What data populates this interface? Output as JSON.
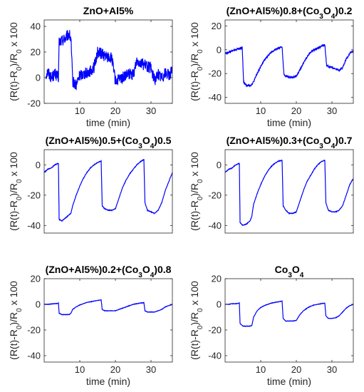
{
  "line_color": "#0000ff",
  "chart_data": [
    {
      "type": "line",
      "title": [
        {
          "t": "ZnO+Al5%"
        }
      ],
      "xlabel": "time (min)",
      "ylabel": [
        {
          "t": "(R(t)-R"
        },
        {
          "t": "0",
          "sub": true
        },
        {
          "t": ")/R"
        },
        {
          "t": "0",
          "sub": true
        },
        {
          "t": " x 100"
        }
      ],
      "xlim": [
        0,
        36
      ],
      "ylim": [
        -20,
        45
      ],
      "xticks": [
        10,
        20,
        30
      ],
      "yticks": [
        -20,
        0,
        20,
        40
      ],
      "grid": false,
      "series": [
        {
          "noise": 4.5,
          "x": [
            0.5,
            1,
            2,
            3,
            4,
            4.2,
            5,
            6,
            7,
            7.5,
            8,
            9,
            10,
            11,
            13,
            14,
            15,
            16,
            17,
            18,
            19,
            20,
            22,
            24,
            25,
            26,
            27,
            28,
            29,
            30,
            31,
            32,
            33,
            34,
            35,
            36
          ],
          "y": [
            2,
            5,
            0,
            3,
            0,
            28,
            29,
            31,
            34,
            30,
            -3,
            -6,
            2,
            3,
            5,
            8,
            20,
            19,
            17,
            16,
            15,
            -3,
            0,
            3,
            2,
            14,
            12,
            10,
            9,
            7,
            -2,
            3,
            0,
            4,
            2,
            5
          ]
        }
      ]
    },
    {
      "type": "line",
      "title": [
        {
          "t": "(ZnO+Al5%)0.8+(Co"
        },
        {
          "t": "3",
          "sub": true
        },
        {
          "t": "O"
        },
        {
          "t": "4",
          "sub": true
        },
        {
          "t": ")0.2"
        }
      ],
      "xlabel": "time (min)",
      "ylabel": [
        {
          "t": "(R(t)-R"
        },
        {
          "t": "0",
          "sub": true
        },
        {
          "t": ")/R"
        },
        {
          "t": "0",
          "sub": true
        },
        {
          "t": " x 100"
        }
      ],
      "xlim": [
        0,
        36
      ],
      "ylim": [
        -45,
        25
      ],
      "xticks": [
        10,
        20,
        30
      ],
      "yticks": [
        -40,
        -20,
        0,
        20
      ],
      "grid": false,
      "series": [
        {
          "noise": 0.8,
          "x": [
            0,
            1,
            2,
            3,
            4,
            4.8,
            5.2,
            6,
            7,
            7.5,
            8,
            9,
            10,
            11,
            12,
            13,
            14,
            15,
            16,
            16.5,
            17,
            18,
            19,
            20,
            21,
            22,
            23,
            24,
            25,
            26,
            27,
            28,
            28.5,
            29,
            30,
            31,
            32,
            33,
            34,
            35,
            36
          ],
          "y": [
            -3,
            -2,
            -1,
            0,
            1,
            2,
            -27,
            -30,
            -30,
            -29,
            -27,
            -20,
            -14,
            -9,
            -5,
            -2,
            0,
            1.5,
            2.5,
            -20,
            -22,
            -23,
            -23,
            -22,
            -17,
            -11,
            -6,
            -2,
            0,
            1.5,
            3,
            4,
            -13,
            -14,
            -15,
            -16,
            -17,
            -15,
            -8,
            -3,
            -1
          ]
        }
      ]
    },
    {
      "type": "line",
      "title": [
        {
          "t": "(ZnO+Al5%)0.5+(Co"
        },
        {
          "t": "3",
          "sub": true
        },
        {
          "t": "O"
        },
        {
          "t": "4",
          "sub": true
        },
        {
          "t": ")0.5"
        }
      ],
      "xlabel": "",
      "ylabel": [
        {
          "t": "(R(t)-R"
        },
        {
          "t": "0",
          "sub": true
        },
        {
          "t": ")/R"
        },
        {
          "t": "0",
          "sub": true
        },
        {
          "t": " x 100"
        }
      ],
      "xlim": [
        0,
        36
      ],
      "ylim": [
        -45,
        10
      ],
      "xticks": [],
      "yticks": [
        -40,
        -20,
        0
      ],
      "grid": false,
      "series": [
        {
          "noise": 0.2,
          "x": [
            0,
            1,
            2,
            3,
            4,
            4.2,
            5,
            6,
            7,
            7.5,
            8,
            9,
            10,
            11,
            12,
            13,
            14,
            15,
            16,
            16.3,
            17,
            18,
            19,
            20,
            21,
            22,
            23,
            24,
            25,
            26,
            27,
            28,
            28.3,
            29,
            30,
            31,
            32,
            33,
            34,
            35,
            36
          ],
          "y": [
            -5,
            -3,
            -2,
            0,
            1,
            -36,
            -37,
            -35,
            -33,
            -32,
            -27,
            -20,
            -14,
            -9,
            -5,
            -2,
            0,
            1.5,
            2.5,
            -27,
            -29,
            -30,
            -30,
            -29,
            -22,
            -15,
            -10,
            -6,
            -3,
            0,
            2,
            3.5,
            -25,
            -30,
            -31,
            -32,
            -30,
            -25,
            -17,
            -11,
            -5
          ]
        }
      ]
    },
    {
      "type": "line",
      "title": [
        {
          "t": "(ZnO+Al5%)0.3+(Co"
        },
        {
          "t": "3",
          "sub": true
        },
        {
          "t": "O"
        },
        {
          "t": "4",
          "sub": true
        },
        {
          "t": ")0.7"
        }
      ],
      "xlabel": "",
      "ylabel": [
        {
          "t": "(R(t)-R"
        },
        {
          "t": "0",
          "sub": true
        },
        {
          "t": ")/R"
        },
        {
          "t": "0",
          "sub": true
        },
        {
          "t": " x 100"
        }
      ],
      "xlim": [
        0,
        36
      ],
      "ylim": [
        -45,
        10
      ],
      "xticks": [],
      "yticks": [
        -40,
        -20,
        0
      ],
      "grid": false,
      "series": [
        {
          "noise": 0.2,
          "x": [
            0,
            1,
            2,
            3,
            4,
            4.2,
            5,
            6,
            7,
            7.5,
            8,
            9,
            10,
            11,
            12,
            13,
            14,
            15,
            16,
            16.3,
            17,
            18,
            19,
            20,
            21,
            22,
            23,
            24,
            25,
            26,
            27,
            28,
            28.3,
            29,
            30,
            31,
            32,
            33,
            34,
            35,
            36
          ],
          "y": [
            -5,
            -3,
            -2,
            0,
            1,
            -38,
            -40,
            -39,
            -37,
            -34,
            -26,
            -19,
            -13,
            -8,
            -4,
            -1,
            1,
            2.5,
            3,
            -27,
            -30,
            -32,
            -32,
            -31,
            -24,
            -17,
            -11,
            -7,
            -3,
            0,
            2,
            3,
            -25,
            -30,
            -31,
            -31,
            -30,
            -27,
            -20,
            -13,
            -9
          ]
        }
      ]
    },
    {
      "type": "line",
      "title": [
        {
          "t": "(ZnO+Al5%)0.2+(Co"
        },
        {
          "t": "3",
          "sub": true
        },
        {
          "t": "O"
        },
        {
          "t": "4",
          "sub": true
        },
        {
          "t": ")0.8"
        }
      ],
      "xlabel": "time (min)",
      "ylabel": [
        {
          "t": "(R(t)-R"
        },
        {
          "t": "0",
          "sub": true
        },
        {
          "t": ")/R"
        },
        {
          "t": "0",
          "sub": true
        },
        {
          "t": " x 100"
        }
      ],
      "xlim": [
        0,
        36
      ],
      "ylim": [
        -45,
        20
      ],
      "xticks": [
        10,
        20,
        30
      ],
      "yticks": [
        -40,
        -20,
        0,
        20
      ],
      "grid": false,
      "series": [
        {
          "noise": 0.15,
          "x": [
            0,
            1,
            2,
            3,
            4,
            4.2,
            5,
            6,
            7,
            7.5,
            8,
            9,
            10,
            11,
            12,
            13,
            14,
            15,
            16,
            16.3,
            17,
            18,
            19,
            20,
            21,
            22,
            23,
            24,
            25,
            26,
            27,
            28,
            28.3,
            29,
            30,
            31,
            32,
            33,
            34,
            35,
            36
          ],
          "y": [
            0,
            0,
            0.3,
            0.5,
            0.8,
            -7,
            -8,
            -8,
            -8,
            -7,
            -4,
            -2,
            -0.5,
            0.5,
            1.5,
            2,
            2.5,
            3,
            3.5,
            -4,
            -5,
            -5,
            -5,
            -5,
            -4,
            -3,
            -2,
            -1,
            0,
            0.5,
            1,
            1.3,
            -5,
            -6,
            -6,
            -6,
            -5,
            -4,
            -2,
            -1,
            0
          ]
        }
      ]
    },
    {
      "type": "line",
      "title": [
        {
          "t": "Co"
        },
        {
          "t": "3",
          "sub": true
        },
        {
          "t": "O"
        },
        {
          "t": "4",
          "sub": true
        }
      ],
      "xlabel": "time (min)",
      "ylabel": [
        {
          "t": "(R(t)-R"
        },
        {
          "t": "0",
          "sub": true
        },
        {
          "t": ")/R"
        },
        {
          "t": "0",
          "sub": true
        },
        {
          "t": " x 100"
        }
      ],
      "xlim": [
        0,
        36
      ],
      "ylim": [
        -45,
        20
      ],
      "xticks": [
        10,
        20,
        30
      ],
      "yticks": [
        -40,
        -20,
        0,
        20
      ],
      "grid": false,
      "series": [
        {
          "noise": 0.15,
          "x": [
            0,
            1,
            2,
            3,
            4,
            4.2,
            5,
            6,
            7,
            7.5,
            8,
            9,
            10,
            11,
            12,
            13,
            14,
            15,
            16,
            16.3,
            17,
            18,
            19,
            20,
            21,
            22,
            23,
            24,
            25,
            26,
            27,
            28,
            28.3,
            29,
            30,
            31,
            32,
            33,
            34,
            35,
            36
          ],
          "y": [
            0,
            0,
            0.5,
            0.5,
            1,
            -15,
            -17,
            -17,
            -17,
            -16.5,
            -10,
            -5,
            -2.5,
            -1,
            0,
            1,
            1.5,
            2,
            2.5,
            -11,
            -13,
            -13,
            -13,
            -12.5,
            -8,
            -5,
            -3,
            -1.5,
            -0.5,
            0,
            0.5,
            1,
            -9,
            -11,
            -11,
            -10.5,
            -9,
            -6,
            -3,
            -1,
            0
          ]
        }
      ]
    }
  ]
}
